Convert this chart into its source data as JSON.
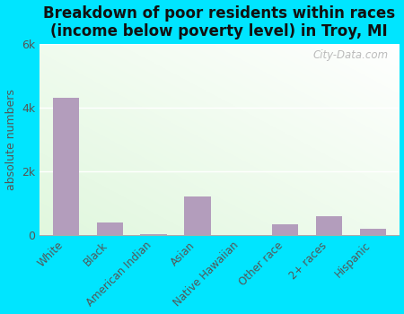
{
  "title": "Breakdown of poor residents within races\n(income below poverty level) in Troy, MI",
  "categories": [
    "White",
    "Black",
    "American Indian",
    "Asian",
    "Native Hawaiian",
    "Other race",
    "2+ races",
    "Hispanic"
  ],
  "values": [
    4300,
    400,
    20,
    1200,
    5,
    350,
    600,
    200
  ],
  "bar_color": "#b39dbc",
  "ylabel": "absolute numbers",
  "ylim": [
    0,
    6000
  ],
  "yticks": [
    0,
    2000,
    4000,
    6000
  ],
  "ytick_labels": [
    "0",
    "2k",
    "4k",
    "6k"
  ],
  "outer_bg": "#00e5ff",
  "title_fontsize": 12,
  "watermark": "City-Data.com"
}
